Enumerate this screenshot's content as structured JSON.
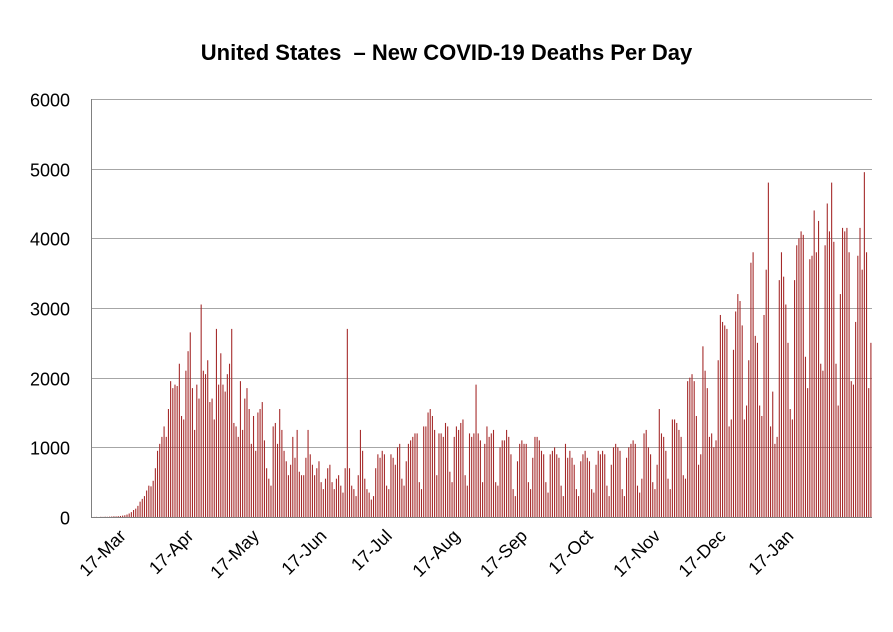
{
  "chart_data": {
    "type": "bar",
    "title": "United States  – New COVID-19 Deaths Per Day",
    "xlabel": "",
    "ylabel": "",
    "ylim": [
      0,
      6000
    ],
    "yticks": [
      0,
      1000,
      2000,
      3000,
      4000,
      5000,
      6000
    ],
    "grid": "horizontal",
    "legend": "none",
    "bar_color": "#a52a2a",
    "x_start": "2020-03-01",
    "xtick_labels": [
      "17-Mar",
      "17-Apr",
      "17-May",
      "17-Jun",
      "17-Jul",
      "17-Aug",
      "17-Sep",
      "17-Oct",
      "17-Nov",
      "17-Dec",
      "17-Jan"
    ],
    "xtick_dates": [
      "2020-03-17",
      "2020-04-17",
      "2020-05-17",
      "2020-06-17",
      "2020-07-17",
      "2020-08-17",
      "2020-09-17",
      "2020-10-17",
      "2020-11-17",
      "2020-12-17",
      "2021-01-17"
    ],
    "values": [
      0,
      1,
      2,
      0,
      3,
      2,
      4,
      3,
      5,
      7,
      10,
      9,
      12,
      15,
      20,
      25,
      35,
      50,
      70,
      100,
      120,
      160,
      220,
      260,
      300,
      380,
      450,
      440,
      520,
      700,
      950,
      1050,
      1150,
      1300,
      1150,
      1550,
      1950,
      1850,
      1900,
      1880,
      2200,
      1450,
      1400,
      2100,
      2380,
      2650,
      1850,
      1250,
      1900,
      1700,
      3050,
      2100,
      2050,
      2250,
      1650,
      1700,
      1400,
      2700,
      1900,
      2350,
      1900,
      1800,
      2050,
      2200,
      2700,
      1350,
      1300,
      1150,
      1950,
      1250,
      1700,
      1850,
      1550,
      1050,
      1450,
      950,
      1500,
      1550,
      1650,
      1100,
      700,
      550,
      450,
      1300,
      1350,
      1050,
      1550,
      1250,
      950,
      800,
      600,
      750,
      1150,
      850,
      1250,
      650,
      600,
      600,
      850,
      1250,
      900,
      750,
      600,
      700,
      800,
      500,
      400,
      550,
      700,
      750,
      500,
      400,
      550,
      600,
      450,
      350,
      700,
      2700,
      700,
      450,
      400,
      300,
      600,
      1250,
      950,
      550,
      400,
      350,
      250,
      300,
      700,
      900,
      850,
      950,
      900,
      450,
      400,
      900,
      850,
      750,
      1000,
      1050,
      550,
      450,
      800,
      1050,
      1100,
      1150,
      1200,
      1200,
      500,
      400,
      1300,
      1300,
      1500,
      1550,
      1450,
      1250,
      600,
      1200,
      1200,
      1150,
      1350,
      1300,
      650,
      500,
      1150,
      1300,
      1250,
      1350,
      1400,
      600,
      450,
      1200,
      1150,
      1200,
      1900,
      1200,
      1100,
      500,
      1050,
      1300,
      1150,
      1200,
      1250,
      500,
      450,
      1000,
      1100,
      1100,
      1250,
      1150,
      900,
      400,
      300,
      800,
      1050,
      1100,
      1050,
      1050,
      500,
      400,
      850,
      1150,
      1150,
      1100,
      950,
      900,
      500,
      350,
      900,
      950,
      1000,
      900,
      850,
      450,
      300,
      1050,
      850,
      950,
      850,
      750,
      400,
      300,
      800,
      900,
      950,
      850,
      800,
      400,
      350,
      750,
      950,
      900,
      950,
      900,
      450,
      300,
      750,
      1000,
      1050,
      1000,
      950,
      400,
      300,
      850,
      1000,
      1050,
      1100,
      1050,
      450,
      350,
      550,
      1200,
      1250,
      1000,
      900,
      500,
      400,
      750,
      1550,
      1200,
      1150,
      950,
      550,
      400,
      1400,
      1400,
      1350,
      1250,
      1150,
      600,
      550,
      1950,
      2000,
      2050,
      1950,
      1450,
      750,
      900,
      2450,
      2100,
      1850,
      1150,
      1200,
      1000,
      1100,
      2250,
      2900,
      2800,
      2750,
      2700,
      1300,
      1400,
      2400,
      2950,
      3200,
      3100,
      2750,
      1400,
      1600,
      2250,
      3650,
      3800,
      2600,
      2500,
      1600,
      1450,
      2900,
      3550,
      4800,
      1300,
      1800,
      1050,
      1150,
      3400,
      3800,
      3450,
      3050,
      2500,
      1550,
      1400,
      3400,
      3900,
      4000,
      4100,
      4050,
      2300,
      1850,
      3700,
      3750,
      4400,
      3800,
      4250,
      2200,
      2100,
      3900,
      4500,
      4100,
      4800,
      3950,
      2200,
      1600,
      3200,
      4150,
      4100,
      4150,
      3800,
      1950,
      1900,
      2800,
      3750,
      4150,
      3550,
      4950,
      3800,
      1850,
      2500
    ]
  }
}
